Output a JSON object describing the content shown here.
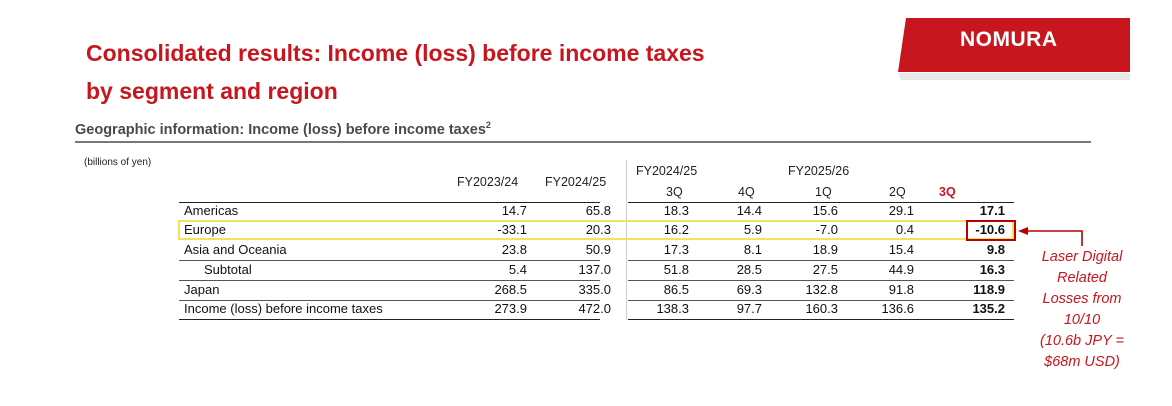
{
  "title_line1": "Consolidated results: Income (loss) before income taxes",
  "title_line2": "by segment and region",
  "logo_text": "NOMURA",
  "subtitle": "Geographic information: Income (loss) before income taxes",
  "subtitle_sup": "2",
  "units": "(billions of yen)",
  "headers": {
    "fy2324": "FY2023/24",
    "fy2425": "FY2024/25",
    "fy2425_quarters": "FY2024/25",
    "fy2526_quarters": "FY2025/26",
    "q3a": "3Q",
    "q4": "4Q",
    "q1": "1Q",
    "q2": "2Q",
    "q3b": "3Q"
  },
  "rows": [
    {
      "label": "Americas",
      "values": [
        "14.7",
        "65.8",
        "18.3",
        "14.4",
        "15.6",
        "29.1",
        "17.1"
      ]
    },
    {
      "label": "Europe",
      "values": [
        "-33.1",
        "20.3",
        "16.2",
        "5.9",
        "-7.0",
        "0.4",
        "-10.6"
      ]
    },
    {
      "label": "Asia and Oceania",
      "values": [
        "23.8",
        "50.9",
        "17.3",
        "8.1",
        "18.9",
        "15.4",
        "9.8"
      ]
    },
    {
      "label": "Subtotal",
      "values": [
        "5.4",
        "137.0",
        "51.8",
        "28.5",
        "27.5",
        "44.9",
        "16.3"
      ]
    },
    {
      "label": "Japan",
      "values": [
        "268.5",
        "335.0",
        "86.5",
        "69.3",
        "132.8",
        "91.8",
        "118.9"
      ]
    },
    {
      "label": "Income (loss) before income taxes",
      "values": [
        "273.9",
        "472.0",
        "138.3",
        "97.7",
        "160.3",
        "136.6",
        "135.2"
      ]
    }
  ],
  "annotation": {
    "line1": "Laser Digital",
    "line2": "Related",
    "line3": "Losses from",
    "line4": "10/10",
    "line5": "(10.6b JPY =",
    "line6": "$68m USD)"
  },
  "colors": {
    "brand_red": "#c8161e",
    "highlight_yellow": "#f2e35a",
    "annotation_box": "#b80000"
  }
}
